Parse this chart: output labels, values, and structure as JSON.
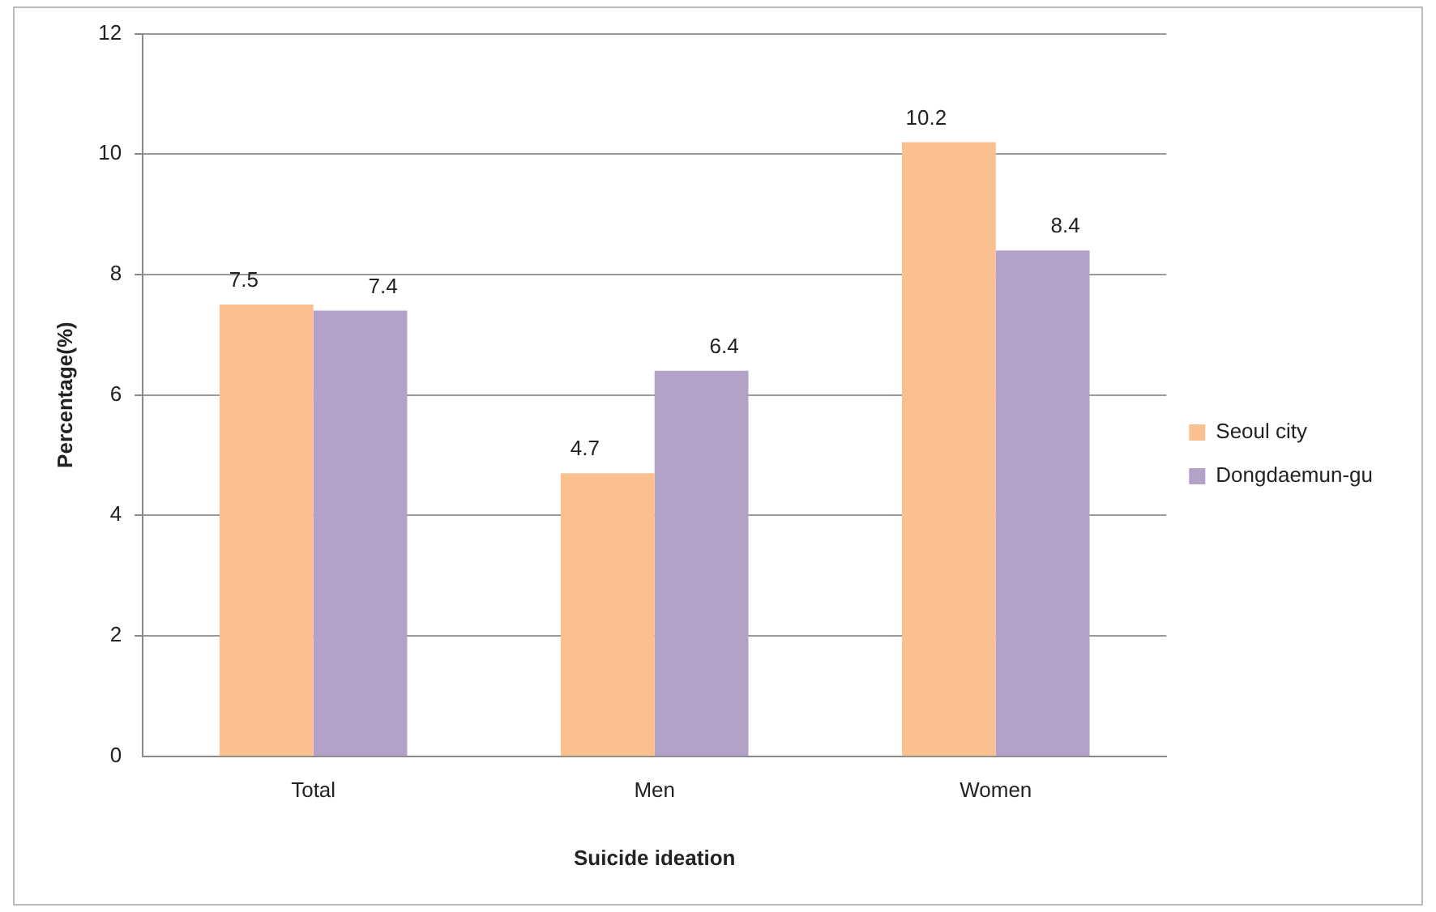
{
  "chart_data": {
    "type": "bar",
    "xlabel": "Suicide ideation",
    "ylabel": "Percentage(%)",
    "categories": [
      "Total",
      "Men",
      "Women"
    ],
    "series": [
      {
        "name": "Seoul city",
        "color": "#fac090",
        "values": [
          7.5,
          4.7,
          10.2
        ]
      },
      {
        "name": "Dongdaemun-gu",
        "color": "#b3a2c7",
        "values": [
          7.4,
          6.4,
          8.4
        ]
      }
    ],
    "ylim": [
      0,
      12
    ],
    "yticks": [
      0,
      2,
      4,
      6,
      8,
      10,
      12
    ],
    "grid": "y",
    "legend": "right",
    "data_labels": true
  }
}
